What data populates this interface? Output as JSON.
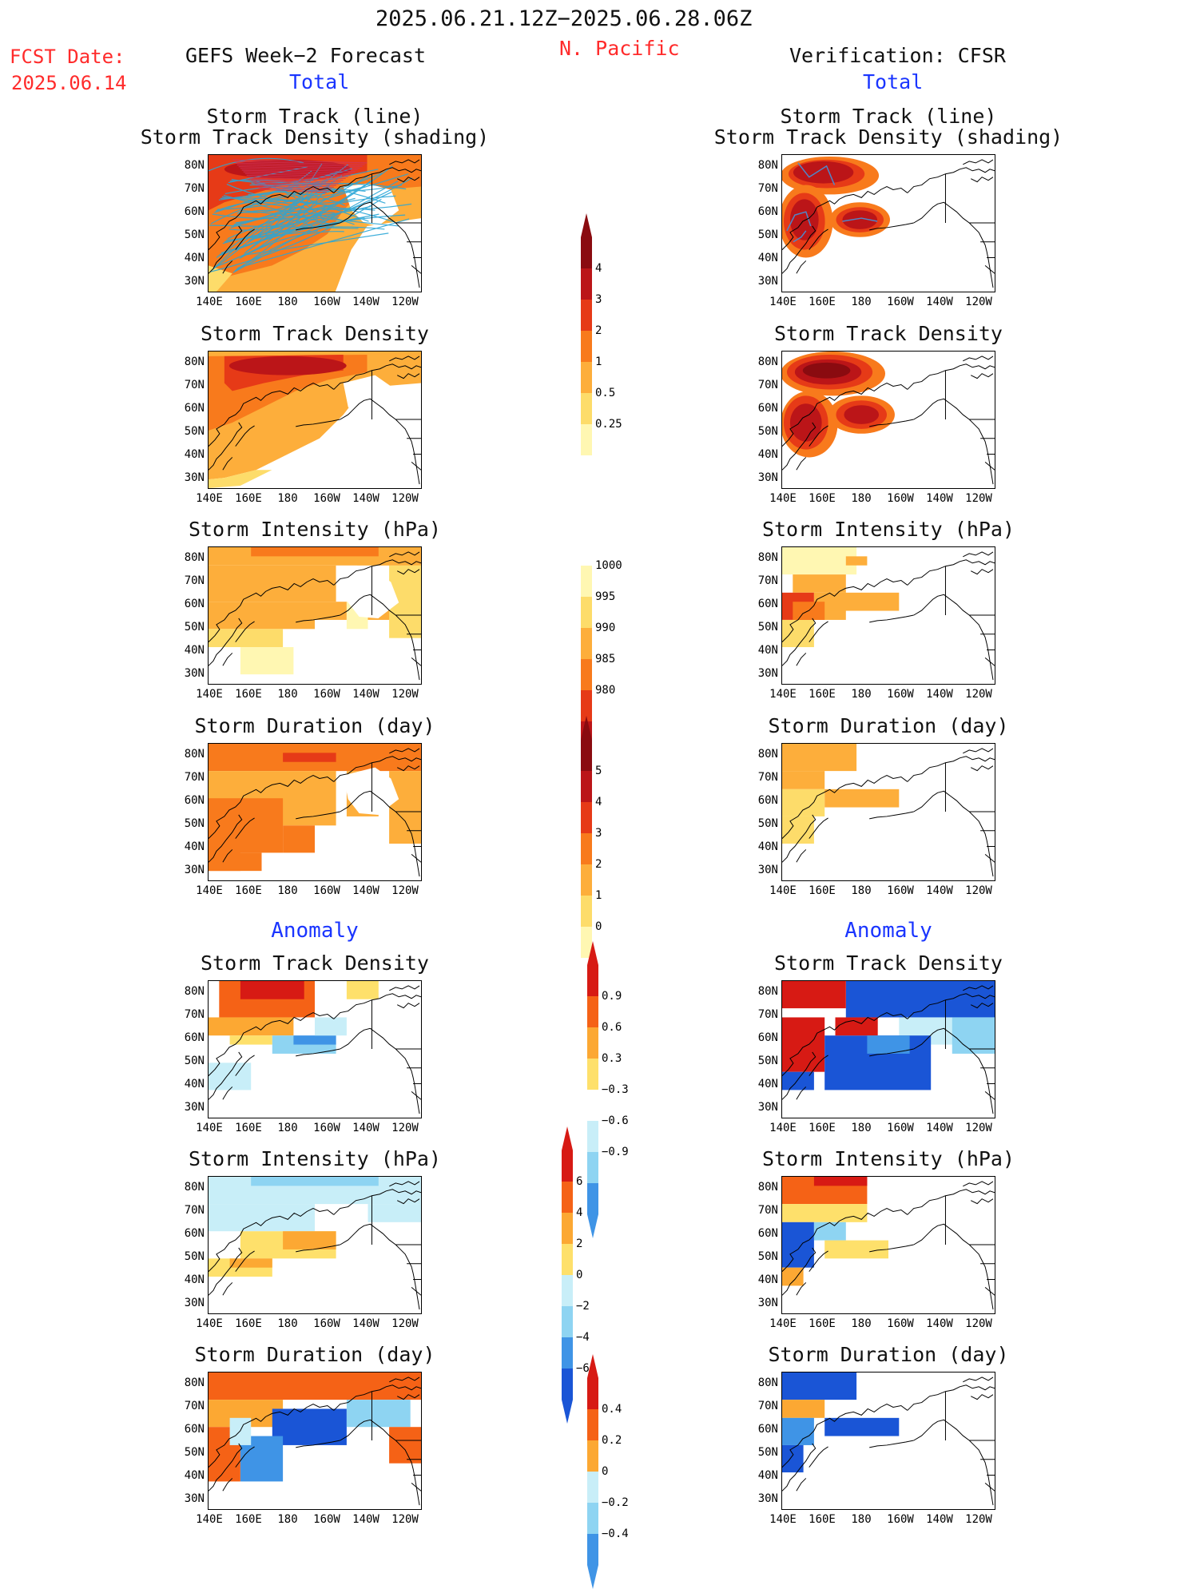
{
  "header": {
    "period": "2025.06.21.12Z−2025.06.28.06Z",
    "region": "N. Pacific",
    "fcst_label": "FCST Date:",
    "fcst_date": "2025.06.14",
    "left_model": "GEFS Week−2 Forecast",
    "right_model": "Verification: CFSR",
    "total_label": "Total",
    "anomaly_label": "Anomaly"
  },
  "axes": {
    "lat_ticks": [
      "80N",
      "70N",
      "60N",
      "50N",
      "40N",
      "30N"
    ],
    "lon_ticks": [
      "140E",
      "160E",
      "180",
      "160W",
      "140W",
      "120W"
    ]
  },
  "panels": {
    "track_title_1": "Storm Track (line)",
    "track_title_2": "Storm Track Density (shading)",
    "density": "Storm Track Density",
    "intensity": "Storm Intensity (hPa)",
    "duration": "Storm Duration (day)"
  },
  "colorbars": {
    "density": [
      "4",
      "3",
      "2",
      "1",
      "0.5",
      "0.25"
    ],
    "intensity": [
      "1000",
      "995",
      "990",
      "985",
      "980"
    ],
    "duration": [
      "5",
      "4",
      "3",
      "2",
      "1",
      "0"
    ],
    "density_anom": [
      "0.9",
      "0.6",
      "0.3",
      "−0.3",
      "−0.6",
      "−0.9"
    ],
    "intensity_anom": [
      "6",
      "4",
      "2",
      "0",
      "−2",
      "−4",
      "−6"
    ],
    "duration_anom": [
      "0.4",
      "0.2",
      "0",
      "−0.2",
      "−0.4"
    ]
  },
  "colors": {
    "seq": [
      "#fff7b2",
      "#fddc6a",
      "#fdae3b",
      "#f87a1c",
      "#e63a17",
      "#bb1518",
      "#8a0b10"
    ],
    "div_pos": [
      "#fee06b",
      "#fca833",
      "#f56216",
      "#d71a14"
    ],
    "div_neg": [
      "#c8eef8",
      "#8ed4f2",
      "#3f94e6",
      "#1a55d6"
    ],
    "track_line": "#2aa6d6",
    "track_line_obs": "#4f86c9"
  }
}
